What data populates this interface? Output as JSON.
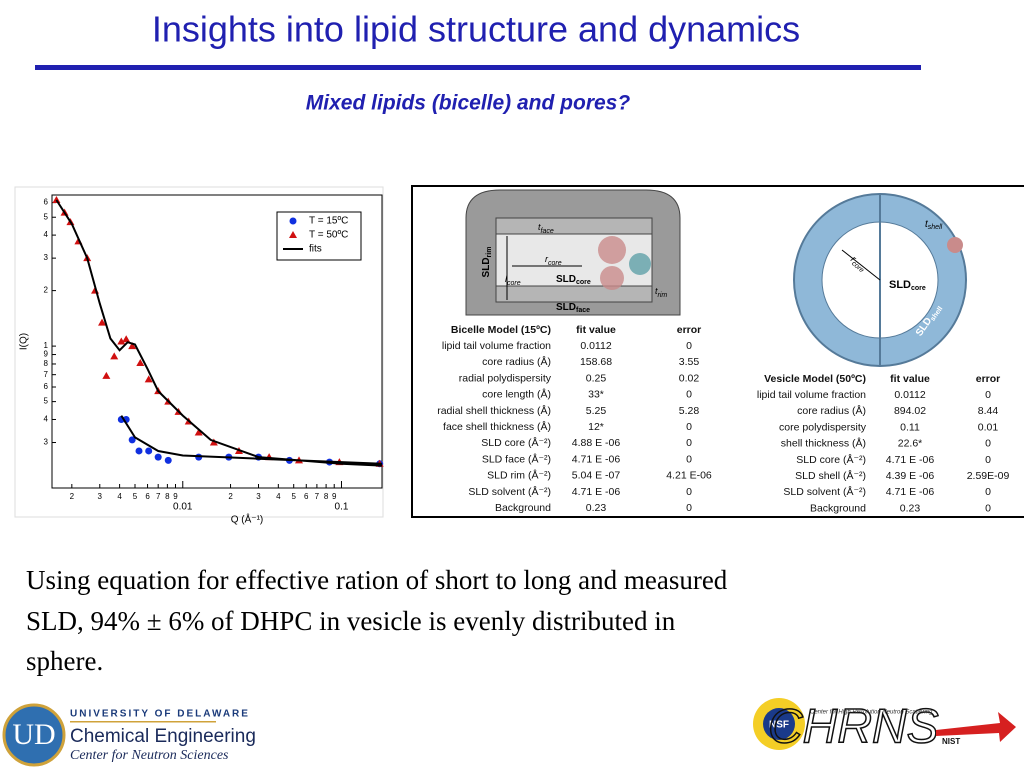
{
  "title": "Insights into lipid structure and dynamics",
  "subtitle": "Mixed lipids (bicelle) and pores?",
  "chart_data": {
    "type": "scatter",
    "xlabel": "Q (Å⁻¹)",
    "ylabel": "I(Q)",
    "xscale": "log",
    "yscale": "log",
    "xlim": [
      0.0015,
      0.18
    ],
    "ylim": [
      0.17,
      6.6
    ],
    "xticks": [
      {
        "value": 0.002,
        "label": "2"
      },
      {
        "value": 0.003,
        "label": "3"
      },
      {
        "value": 0.004,
        "label": "4"
      },
      {
        "value": 0.005,
        "label": "5"
      },
      {
        "value": 0.006,
        "label": "6"
      },
      {
        "value": 0.007,
        "label": "7"
      },
      {
        "value": 0.008,
        "label": "8"
      },
      {
        "value": 0.009,
        "label": "9"
      },
      0.01,
      {
        "value": 0.02,
        "label": "2"
      },
      {
        "value": 0.03,
        "label": "3"
      },
      {
        "value": 0.04,
        "label": "4"
      },
      {
        "value": 0.05,
        "label": "5"
      },
      {
        "value": 0.06,
        "label": "6"
      },
      {
        "value": 0.07,
        "label": "7"
      },
      {
        "value": 0.08,
        "label": "8"
      },
      {
        "value": 0.09,
        "label": "9"
      },
      0.1
    ],
    "yticks": [
      {
        "value": 0.3,
        "label": "3"
      },
      {
        "value": 0.4,
        "label": "4"
      },
      {
        "value": 0.5,
        "label": "5"
      },
      {
        "value": 0.6,
        "label": "6"
      },
      {
        "value": 0.7,
        "label": "7"
      },
      {
        "value": 0.8,
        "label": "8"
      },
      {
        "value": 0.9,
        "label": "9"
      },
      1,
      2,
      3,
      4,
      5,
      6
    ],
    "legend": "upper right",
    "series": [
      {
        "name": "T = 15ºC",
        "color": "#1030e0",
        "marker": "circle",
        "x": [
          0.0041,
          0.0044,
          0.0048,
          0.0053,
          0.0061,
          0.007,
          0.0081,
          0.0126,
          0.0195,
          0.03,
          0.047,
          0.084,
          0.174
        ],
        "values": [
          0.4,
          0.4,
          0.31,
          0.27,
          0.27,
          0.25,
          0.24,
          0.25,
          0.25,
          0.25,
          0.24,
          0.235,
          0.23
        ]
      },
      {
        "name": "T = 50ºC",
        "color": "#d01010",
        "marker": "triangle",
        "x": [
          0.0016,
          0.0018,
          0.00196,
          0.0022,
          0.0025,
          0.0028,
          0.0031,
          0.0033,
          0.0037,
          0.0041,
          0.0044,
          0.0048,
          0.0054,
          0.0061,
          0.007,
          0.0081,
          0.0094,
          0.0109,
          0.0126,
          0.0157,
          0.0226,
          0.035,
          0.054,
          0.097,
          0.174
        ],
        "values": [
          6.2,
          5.3,
          4.7,
          3.7,
          3.0,
          2.0,
          1.34,
          0.69,
          0.88,
          1.06,
          1.09,
          1.0,
          0.81,
          0.66,
          0.57,
          0.5,
          0.44,
          0.39,
          0.34,
          0.3,
          0.27,
          0.25,
          0.24,
          0.235,
          0.23
        ]
      },
      {
        "name": "fits",
        "color": "#000000",
        "marker": "line",
        "x": [
          0.0016,
          0.002,
          0.0025,
          0.003,
          0.0035,
          0.004,
          0.0045,
          0.005,
          0.006,
          0.007,
          0.01,
          0.015,
          0.03,
          0.1,
          0.18,
          null,
          0.0041,
          0.005,
          0.007,
          0.01,
          0.03,
          0.1,
          0.18
        ],
        "values": [
          6.2,
          4.6,
          3.0,
          1.7,
          1.1,
          0.95,
          1.05,
          1.02,
          0.75,
          0.57,
          0.42,
          0.31,
          0.25,
          0.23,
          0.225,
          null,
          0.42,
          0.32,
          0.27,
          0.255,
          0.245,
          0.235,
          0.23
        ]
      }
    ]
  },
  "bicelle_diagram": {
    "labels": [
      {
        "text": "t",
        "sub": "face"
      },
      {
        "text": "r",
        "sub": "core"
      },
      {
        "text": "SLD",
        "sub": "core"
      },
      {
        "text": "SLD",
        "sub": "rim"
      },
      {
        "text": "l",
        "sub": "core"
      },
      {
        "text": "t",
        "sub": "rim"
      },
      {
        "text": "SLD",
        "sub": "face"
      }
    ]
  },
  "vesicle_diagram": {
    "labels": [
      {
        "text": "t",
        "sub": "shell"
      },
      {
        "text": "r",
        "sub": "core"
      },
      {
        "text": "SLD",
        "sub": "core"
      },
      {
        "text": "SLD",
        "sub": "shell"
      }
    ]
  },
  "bicelle_table": {
    "header": [
      "Bicelle Model (15ºC)",
      "fit value",
      "error"
    ],
    "rows": [
      [
        "lipid tail volume fraction",
        "0.0112",
        "0"
      ],
      [
        "core radius (Å)",
        "158.68",
        "3.55"
      ],
      [
        "radial polydispersity",
        "0.25",
        "0.02"
      ],
      [
        "core length (Å)",
        "33*",
        "0"
      ],
      [
        "radial shell thickness (Å)",
        "5.25",
        "5.28"
      ],
      [
        "face shell thickness (Å)",
        "12*",
        "0"
      ],
      [
        "SLD core (Å⁻²)",
        "4.88 E -06",
        "0"
      ],
      [
        "SLD face (Å⁻²)",
        "4.71 E -06",
        "0"
      ],
      [
        "SLD rim (Å⁻²)",
        "5.04 E -07",
        "4.21 E-06"
      ],
      [
        "SLD solvent (Å⁻²)",
        "4.71 E -06",
        "0"
      ],
      [
        "Background",
        "0.23",
        "0"
      ]
    ]
  },
  "vesicle_table": {
    "header": [
      "Vesicle Model (50ºC)",
      "fit value",
      "error"
    ],
    "rows": [
      [
        "lipid tail volume fraction",
        "0.0112",
        "0"
      ],
      [
        "core radius (Å)",
        "894.02",
        "8.44"
      ],
      [
        "core polydispersity",
        "0.11",
        "0.01"
      ],
      [
        "shell thickness (Å)",
        "22.6*",
        "0"
      ],
      [
        "SLD core (Å⁻²)",
        "4.71 E -06",
        "0"
      ],
      [
        "SLD shell (Å⁻²)",
        "4.39 E -06",
        "2.59E-09"
      ],
      [
        "SLD solvent (Å⁻²)",
        "4.71 E -06",
        "0"
      ],
      [
        "Background",
        "0.23",
        "0"
      ]
    ]
  },
  "body": [
    "Using equation for effective ration of short to long and measured",
    "SLD, 94% ± 6% of DHPC in vesicle is evenly distributed in",
    "sphere."
  ],
  "footer": {
    "university": "UNIVERSITY OF DELAWARE",
    "department": "Chemical Engineering",
    "center": "Center for Neutron Sciences",
    "nsf": "NSF",
    "chrns": "CHRNS",
    "chrns_full": "Center for High Resolution Neutron Scattering",
    "nist": "NIST"
  }
}
